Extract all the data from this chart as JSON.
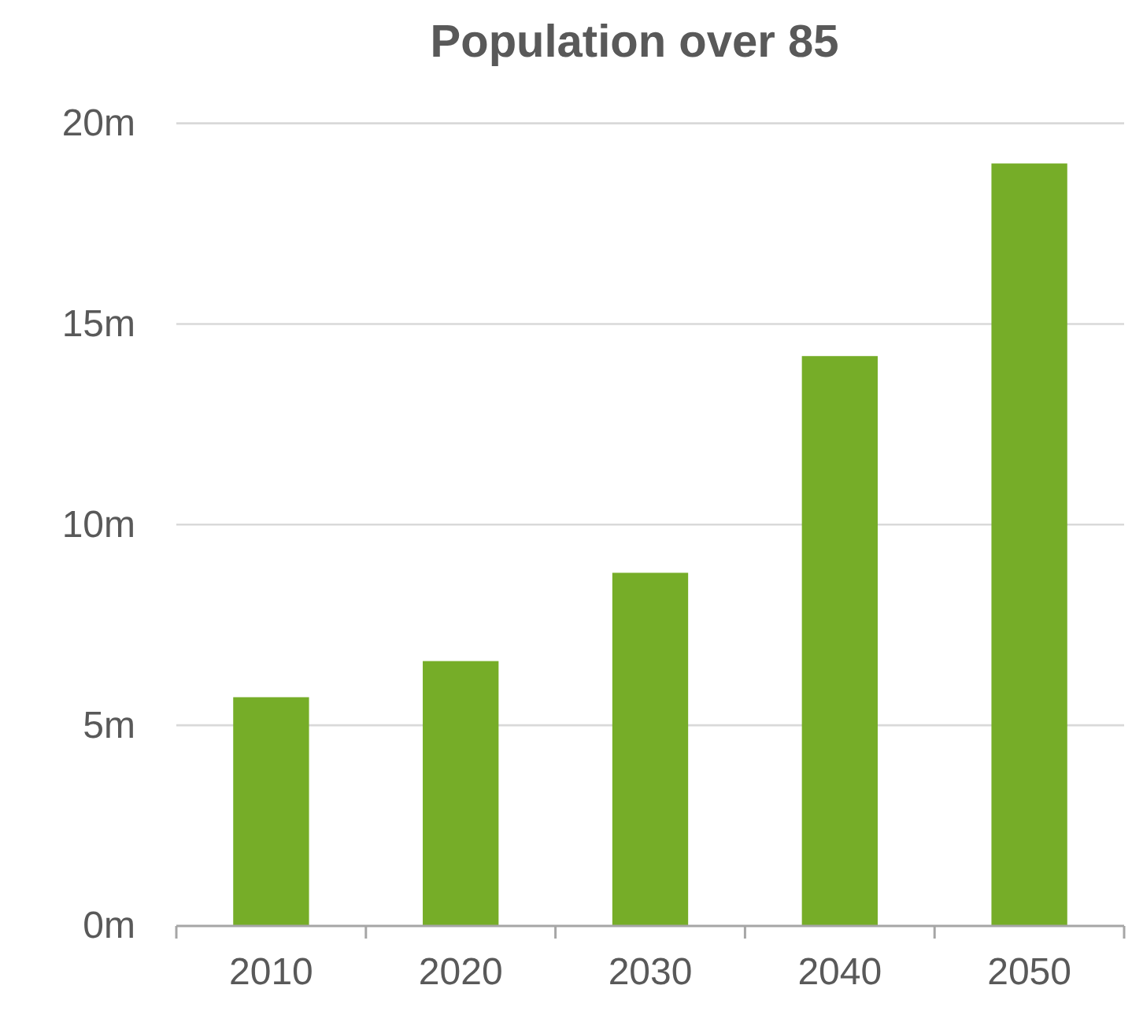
{
  "chart_data": {
    "type": "bar",
    "title": "Population over 85",
    "categories": [
      "2010",
      "2020",
      "2030",
      "2040",
      "2050"
    ],
    "values": [
      5.7,
      6.6,
      8.8,
      14.2,
      19.0
    ],
    "color": "#76ad28",
    "ylim": [
      0,
      20
    ],
    "yticks": [
      {
        "value": 0,
        "label": "0m"
      },
      {
        "value": 5,
        "label": "5m"
      },
      {
        "value": 10,
        "label": "10m"
      },
      {
        "value": 15,
        "label": "15m"
      },
      {
        "value": 20,
        "label": "20m"
      }
    ],
    "grid": "y"
  }
}
